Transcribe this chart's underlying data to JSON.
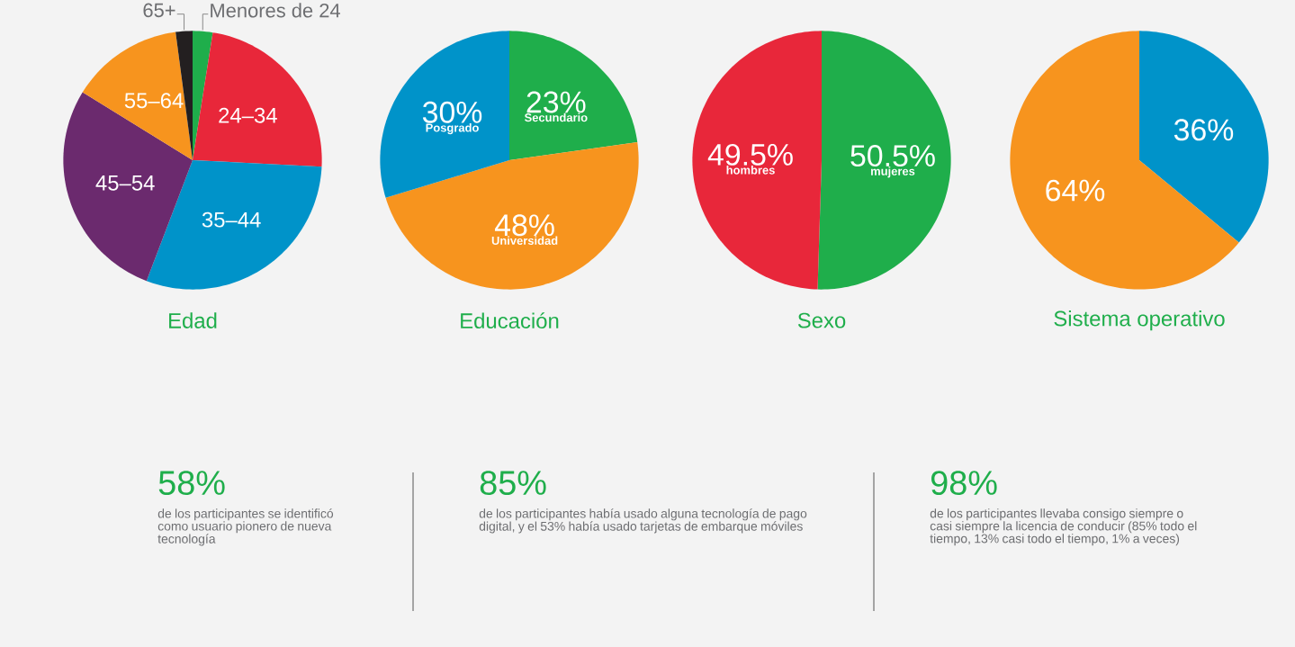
{
  "chart_data": [
    {
      "type": "pie",
      "title": "Edad",
      "categories": [
        "Menores de 24",
        "24–34",
        "35–44",
        "45–54",
        "55–64",
        "65+"
      ],
      "values": [
        2.5,
        23.3,
        30,
        28,
        14.1,
        2.1
      ],
      "colors": [
        "#1fae4b",
        "#e8273a",
        "#0093c9",
        "#6b2a6e",
        "#f7941e",
        "#231f20"
      ]
    },
    {
      "type": "pie",
      "title": "Educación",
      "categories": [
        "Secundario",
        "Universidad",
        "Posgrado"
      ],
      "values": [
        23,
        48,
        30
      ],
      "value_labels": [
        "23%",
        "48%",
        "30%"
      ],
      "colors": [
        "#1fae4b",
        "#f7941e",
        "#0093c9"
      ]
    },
    {
      "type": "pie",
      "title": "Sexo",
      "categories": [
        "mujeres",
        "hombres"
      ],
      "values": [
        50.5,
        49.5
      ],
      "value_labels": [
        "50.5%",
        "49.5%"
      ],
      "colors": [
        "#1fae4b",
        "#e8273a"
      ]
    },
    {
      "type": "pie",
      "title": "Sistema operativo",
      "categories": [
        null,
        null
      ],
      "values": [
        36,
        64
      ],
      "value_labels": [
        "36%",
        "64%"
      ],
      "colors": [
        "#0093c9",
        "#f7941e"
      ]
    },
    {
      "type": "other",
      "title": "58%",
      "annotations": [
        "de los participantes se identificó como usuario pionero de nueva tecnología"
      ]
    },
    {
      "type": "other",
      "title": "85%",
      "annotations": [
        "de los participantes había usado alguna tecnología de pago digital, y el 53% había usado tarjetas de embarque móviles"
      ]
    },
    {
      "type": "other",
      "title": "98%",
      "annotations": [
        "de los participantes llevaba consigo siempre o casi siempre la licencia de conducir (85% todo el tiempo, 13% casi todo el tiempo, 1% a veces)"
      ]
    }
  ]
}
